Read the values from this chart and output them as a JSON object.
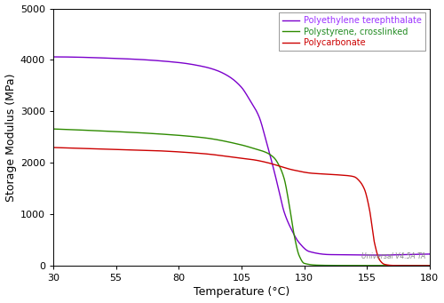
{
  "title": "",
  "xlabel": "Temperature (°C)",
  "ylabel": "Storage Modulus (MPa)",
  "xlim": [
    30,
    180
  ],
  "ylim": [
    0,
    5000
  ],
  "xticks": [
    30,
    55,
    80,
    105,
    130,
    155,
    180
  ],
  "yticks": [
    0,
    1000,
    2000,
    3000,
    4000,
    5000
  ],
  "watermark": "Universal V4.5A TA",
  "series": [
    {
      "name": "Polyethylene terephthalate",
      "color": "#7B00CC",
      "points_x": [
        30,
        60,
        80,
        90,
        95,
        100,
        105,
        108,
        112,
        115,
        118,
        120,
        122,
        125,
        128,
        132,
        140,
        150,
        160,
        170,
        180
      ],
      "points_y": [
        4060,
        4020,
        3950,
        3870,
        3800,
        3680,
        3470,
        3250,
        2900,
        2400,
        1850,
        1450,
        1050,
        700,
        450,
        280,
        220,
        215,
        210,
        220,
        230
      ]
    },
    {
      "name": "Polystyrene, crosslinked",
      "color": "#2E8B00",
      "points_x": [
        30,
        50,
        70,
        90,
        105,
        110,
        115,
        118,
        120,
        122,
        124,
        126,
        128,
        130,
        135,
        140,
        150,
        160,
        170,
        180
      ],
      "points_y": [
        2660,
        2620,
        2570,
        2490,
        2350,
        2280,
        2200,
        2100,
        1950,
        1700,
        1200,
        600,
        200,
        50,
        15,
        10,
        8,
        8,
        8,
        8
      ]
    },
    {
      "name": "Polycarbonate",
      "color": "#CC0000",
      "points_x": [
        30,
        50,
        70,
        90,
        105,
        110,
        115,
        118,
        120,
        122,
        125,
        128,
        130,
        133,
        138,
        143,
        148,
        150,
        152,
        154,
        156,
        158,
        160,
        162,
        165,
        170,
        175,
        180
      ],
      "points_y": [
        2300,
        2270,
        2240,
        2180,
        2090,
        2060,
        2010,
        1970,
        1940,
        1910,
        1870,
        1840,
        1820,
        1800,
        1785,
        1770,
        1750,
        1730,
        1650,
        1490,
        1100,
        450,
        120,
        30,
        10,
        5,
        5,
        5
      ]
    }
  ],
  "legend_colors": [
    "#9B30FF",
    "#228B22",
    "#CC0000"
  ],
  "background_color": "#ffffff",
  "plot_bg_color": "#ffffff",
  "figure_width": 5.0,
  "figure_height": 3.41,
  "dpi": 100
}
